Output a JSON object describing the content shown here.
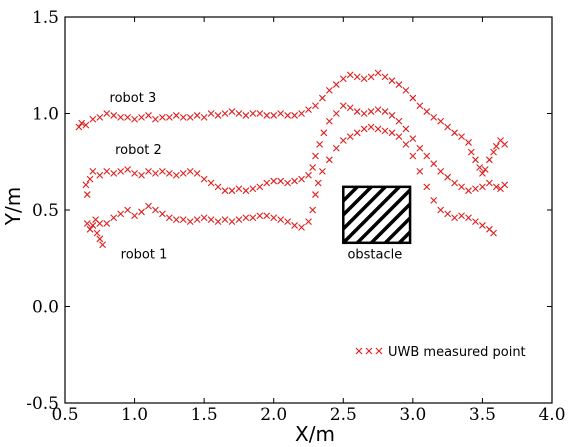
{
  "chart_data": {
    "type": "scatter",
    "xlabel": "X/m",
    "ylabel": "Y/m",
    "xlim": [
      0.5,
      4.0
    ],
    "ylim": [
      -0.5,
      1.5
    ],
    "xticks": [
      "0.5",
      "1.0",
      "1.5",
      "2.0",
      "2.5",
      "3.0",
      "3.5",
      "4.0"
    ],
    "yticks": [
      "-0.5",
      "0.0",
      "0.5",
      "1.0",
      "1.5"
    ],
    "grid": false,
    "legend": {
      "label": "UWB measured point",
      "placement": "bottom-right"
    },
    "marker_color": "#e01e1e",
    "annotations": [
      {
        "text": "robot 3",
        "x": 0.82,
        "y": 1.06
      },
      {
        "text": "robot 2",
        "x": 0.86,
        "y": 0.79
      },
      {
        "text": "robot 1",
        "x": 0.9,
        "y": 0.25
      },
      {
        "text": "obstacle",
        "x": 2.53,
        "y": 0.25
      }
    ],
    "obstacle": {
      "label": "obstacle",
      "x": [
        2.5,
        2.98
      ],
      "y": [
        0.33,
        0.62
      ]
    },
    "series": [
      {
        "points": [
          [
            0.6,
            0.93
          ],
          [
            0.62,
            0.95
          ],
          [
            0.65,
            0.94
          ],
          [
            0.7,
            0.97
          ],
          [
            0.75,
            0.98
          ],
          [
            0.8,
            1.0
          ],
          [
            0.85,
            0.99
          ],
          [
            0.9,
            0.98
          ],
          [
            0.95,
            0.98
          ],
          [
            1.0,
            0.97
          ],
          [
            1.05,
            0.98
          ],
          [
            1.1,
            0.99
          ],
          [
            1.15,
            0.97
          ],
          [
            1.2,
            0.98
          ],
          [
            1.25,
            0.98
          ],
          [
            1.3,
            0.99
          ],
          [
            1.35,
            0.98
          ],
          [
            1.4,
            0.98
          ],
          [
            1.45,
            0.99
          ],
          [
            1.5,
            0.98
          ],
          [
            1.55,
            1.0
          ],
          [
            1.6,
            0.99
          ],
          [
            1.65,
            1.0
          ],
          [
            1.7,
            1.01
          ],
          [
            1.75,
            1.0
          ],
          [
            1.8,
            0.99
          ],
          [
            1.85,
            1.0
          ],
          [
            1.9,
            1.0
          ],
          [
            1.95,
            0.99
          ],
          [
            2.0,
            0.99
          ],
          [
            2.05,
            1.0
          ],
          [
            2.1,
            0.99
          ],
          [
            2.15,
            0.99
          ],
          [
            2.2,
            1.0
          ],
          [
            2.25,
            1.02
          ],
          [
            2.3,
            1.04
          ],
          [
            2.35,
            1.08
          ],
          [
            2.4,
            1.12
          ],
          [
            2.45,
            1.15
          ],
          [
            2.5,
            1.18
          ],
          [
            2.55,
            1.2
          ],
          [
            2.6,
            1.19
          ],
          [
            2.65,
            1.18
          ],
          [
            2.7,
            1.19
          ],
          [
            2.75,
            1.21
          ],
          [
            2.8,
            1.19
          ],
          [
            2.85,
            1.17
          ],
          [
            2.9,
            1.15
          ],
          [
            2.95,
            1.12
          ],
          [
            3.0,
            1.08
          ],
          [
            3.05,
            1.04
          ],
          [
            3.1,
            1.01
          ],
          [
            3.15,
            0.98
          ],
          [
            3.2,
            0.96
          ],
          [
            3.25,
            0.93
          ],
          [
            3.3,
            0.9
          ],
          [
            3.35,
            0.88
          ],
          [
            3.4,
            0.85
          ],
          [
            3.42,
            0.8
          ],
          [
            3.45,
            0.76
          ],
          [
            3.48,
            0.72
          ],
          [
            3.5,
            0.69
          ],
          [
            3.52,
            0.71
          ],
          [
            3.55,
            0.76
          ],
          [
            3.58,
            0.8
          ],
          [
            3.6,
            0.83
          ],
          [
            3.63,
            0.86
          ],
          [
            3.66,
            0.84
          ]
        ]
      },
      {
        "points": [
          [
            0.65,
            0.63
          ],
          [
            0.66,
            0.58
          ],
          [
            0.68,
            0.66
          ],
          [
            0.7,
            0.7
          ],
          [
            0.75,
            0.68
          ],
          [
            0.8,
            0.7
          ],
          [
            0.85,
            0.69
          ],
          [
            0.9,
            0.7
          ],
          [
            0.95,
            0.71
          ],
          [
            1.0,
            0.69
          ],
          [
            1.05,
            0.68
          ],
          [
            1.1,
            0.7
          ],
          [
            1.15,
            0.69
          ],
          [
            1.2,
            0.7
          ],
          [
            1.25,
            0.69
          ],
          [
            1.3,
            0.68
          ],
          [
            1.35,
            0.69
          ],
          [
            1.4,
            0.7
          ],
          [
            1.45,
            0.69
          ],
          [
            1.5,
            0.66
          ],
          [
            1.55,
            0.64
          ],
          [
            1.6,
            0.62
          ],
          [
            1.65,
            0.6
          ],
          [
            1.7,
            0.6
          ],
          [
            1.75,
            0.61
          ],
          [
            1.8,
            0.6
          ],
          [
            1.85,
            0.61
          ],
          [
            1.9,
            0.62
          ],
          [
            1.95,
            0.64
          ],
          [
            2.0,
            0.65
          ],
          [
            2.05,
            0.65
          ],
          [
            2.1,
            0.64
          ],
          [
            2.15,
            0.65
          ],
          [
            2.2,
            0.66
          ],
          [
            2.25,
            0.68
          ],
          [
            2.28,
            0.72
          ],
          [
            2.3,
            0.78
          ],
          [
            2.33,
            0.84
          ],
          [
            2.36,
            0.9
          ],
          [
            2.4,
            0.96
          ],
          [
            2.45,
            1.0
          ],
          [
            2.5,
            1.04
          ],
          [
            2.55,
            1.03
          ],
          [
            2.6,
            1.01
          ],
          [
            2.65,
            1.0
          ],
          [
            2.7,
            1.01
          ],
          [
            2.75,
            1.02
          ],
          [
            2.8,
            1.01
          ],
          [
            2.85,
            0.99
          ],
          [
            2.9,
            0.96
          ],
          [
            2.95,
            0.92
          ],
          [
            3.0,
            0.87
          ],
          [
            3.05,
            0.82
          ],
          [
            3.1,
            0.78
          ],
          [
            3.15,
            0.74
          ],
          [
            3.2,
            0.7
          ],
          [
            3.25,
            0.67
          ],
          [
            3.3,
            0.64
          ],
          [
            3.35,
            0.62
          ],
          [
            3.4,
            0.6
          ],
          [
            3.45,
            0.61
          ],
          [
            3.5,
            0.62
          ],
          [
            3.55,
            0.64
          ],
          [
            3.6,
            0.62
          ],
          [
            3.63,
            0.61
          ],
          [
            3.66,
            0.63
          ]
        ]
      },
      {
        "points": [
          [
            0.66,
            0.43
          ],
          [
            0.68,
            0.4
          ],
          [
            0.7,
            0.42
          ],
          [
            0.72,
            0.45
          ],
          [
            0.75,
            0.43
          ],
          [
            0.73,
            0.38
          ],
          [
            0.75,
            0.35
          ],
          [
            0.77,
            0.32
          ],
          [
            0.8,
            0.43
          ],
          [
            0.85,
            0.46
          ],
          [
            0.9,
            0.48
          ],
          [
            0.95,
            0.5
          ],
          [
            1.0,
            0.47
          ],
          [
            1.05,
            0.49
          ],
          [
            1.1,
            0.52
          ],
          [
            1.15,
            0.5
          ],
          [
            1.2,
            0.48
          ],
          [
            1.25,
            0.46
          ],
          [
            1.3,
            0.45
          ],
          [
            1.35,
            0.45
          ],
          [
            1.4,
            0.44
          ],
          [
            1.45,
            0.45
          ],
          [
            1.5,
            0.46
          ],
          [
            1.55,
            0.45
          ],
          [
            1.6,
            0.44
          ],
          [
            1.65,
            0.45
          ],
          [
            1.7,
            0.44
          ],
          [
            1.75,
            0.45
          ],
          [
            1.8,
            0.46
          ],
          [
            1.85,
            0.46
          ],
          [
            1.9,
            0.47
          ],
          [
            1.95,
            0.47
          ],
          [
            2.0,
            0.46
          ],
          [
            2.05,
            0.45
          ],
          [
            2.1,
            0.44
          ],
          [
            2.15,
            0.42
          ],
          [
            2.2,
            0.41
          ],
          [
            2.25,
            0.44
          ],
          [
            2.28,
            0.5
          ],
          [
            2.3,
            0.58
          ],
          [
            2.32,
            0.64
          ],
          [
            2.35,
            0.7
          ],
          [
            2.4,
            0.76
          ],
          [
            2.45,
            0.82
          ],
          [
            2.5,
            0.86
          ],
          [
            2.55,
            0.88
          ],
          [
            2.6,
            0.9
          ],
          [
            2.65,
            0.92
          ],
          [
            2.7,
            0.93
          ],
          [
            2.75,
            0.92
          ],
          [
            2.8,
            0.91
          ],
          [
            2.85,
            0.9
          ],
          [
            2.9,
            0.88
          ],
          [
            2.95,
            0.84
          ],
          [
            3.0,
            0.78
          ],
          [
            3.05,
            0.7
          ],
          [
            3.1,
            0.62
          ],
          [
            3.15,
            0.55
          ],
          [
            3.2,
            0.5
          ],
          [
            3.25,
            0.48
          ],
          [
            3.3,
            0.46
          ],
          [
            3.35,
            0.47
          ],
          [
            3.4,
            0.46
          ],
          [
            3.45,
            0.44
          ],
          [
            3.5,
            0.42
          ],
          [
            3.55,
            0.4
          ],
          [
            3.58,
            0.38
          ]
        ]
      }
    ]
  }
}
